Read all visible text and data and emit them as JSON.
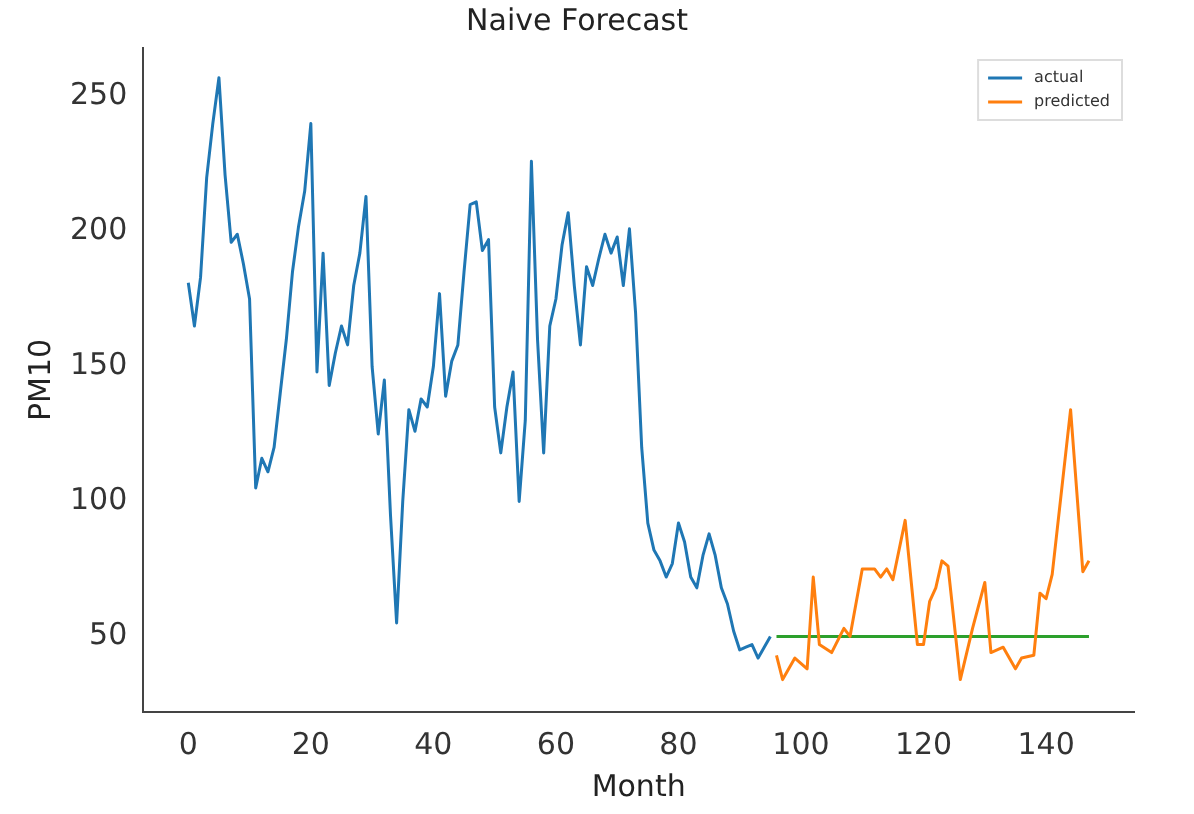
{
  "chart_data": {
    "type": "line",
    "title": "Naive Forecast",
    "xlabel": "Month",
    "ylabel": "PM10",
    "xlim": [
      -7.35,
      154.35
    ],
    "xticks": [
      0,
      20,
      40,
      60,
      80,
      100,
      120,
      140
    ],
    "ylim": [
      22,
      268
    ],
    "yticks": [
      50,
      100,
      150,
      200,
      250
    ],
    "grid": false,
    "legend": "top right",
    "marker": "none",
    "line_style": "solid",
    "series": [
      {
        "name": "actual",
        "color": "#1f77b4",
        "x": [
          0,
          1,
          2,
          3,
          4,
          5,
          6,
          7,
          8,
          9,
          10,
          11,
          12,
          13,
          14,
          15,
          16,
          17,
          18,
          19,
          20,
          21,
          22,
          23,
          24,
          25,
          26,
          27,
          28,
          29,
          30,
          31,
          32,
          33,
          34,
          35,
          36,
          37,
          38,
          39,
          40,
          41,
          42,
          43,
          44,
          45,
          46,
          47,
          48,
          49,
          50,
          51,
          52,
          53,
          54,
          55,
          56,
          57,
          58,
          59,
          60,
          61,
          62,
          63,
          64,
          65,
          66,
          67,
          68,
          69,
          70,
          71,
          72,
          73,
          74,
          75,
          76,
          77,
          78,
          79,
          80,
          81,
          82,
          83,
          84,
          85,
          86,
          87,
          88,
          89,
          90,
          91,
          92,
          93,
          94,
          95
        ],
        "values": [
          181,
          165,
          183,
          220,
          240,
          257,
          221,
          196,
          199,
          188,
          175,
          105,
          116,
          111,
          120,
          140,
          160,
          185,
          202,
          215,
          240,
          148,
          192,
          143,
          155,
          165,
          158,
          180,
          192,
          213,
          150,
          125,
          145,
          95,
          55,
          100,
          134,
          126,
          138,
          135,
          150,
          177,
          139,
          152,
          158,
          185,
          210,
          211,
          193,
          197,
          135,
          118,
          135,
          148,
          100,
          130,
          226,
          160,
          118,
          165,
          175,
          195,
          207,
          180,
          158,
          187,
          180,
          190,
          199,
          192,
          198,
          180,
          201,
          170,
          120,
          92,
          82,
          78,
          72,
          77,
          92,
          85,
          72,
          68,
          80,
          88,
          80,
          68,
          62,
          52,
          45,
          46,
          47,
          42,
          46,
          50
        ]
      },
      {
        "name": "predicted",
        "color": "#ff7f0e",
        "x": [
          96,
          97,
          99,
          101,
          102,
          103,
          105,
          107,
          108,
          110,
          112,
          113,
          114,
          115,
          117,
          119,
          120,
          121,
          122,
          123,
          124,
          126,
          128,
          130,
          131,
          133,
          135,
          136,
          138,
          139,
          140,
          141,
          144,
          146,
          147
        ],
        "values": [
          43,
          34,
          42,
          38,
          72,
          47,
          44,
          53,
          50,
          75,
          75,
          72,
          75,
          71,
          93,
          47,
          47,
          63,
          68,
          78,
          76,
          34,
          53,
          70,
          44,
          46,
          38,
          42,
          43,
          66,
          64,
          73,
          134,
          74,
          78
        ]
      },
      {
        "color": "#2ca02c",
        "x": [
          96,
          147
        ],
        "values": [
          50,
          50
        ]
      }
    ]
  }
}
